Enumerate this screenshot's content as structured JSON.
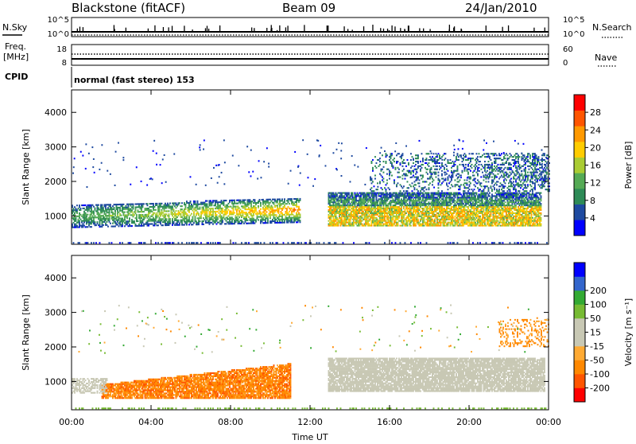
{
  "header": {
    "station": "Blackstone (fitACF)",
    "beam": "Beam 09",
    "date": "24/Jan/2010"
  },
  "noise_panel": {
    "left_label": "N.Sky",
    "right_label": "N.Search",
    "left_ticks": [
      "10^5",
      "10^0"
    ],
    "right_ticks": [
      "10^5",
      "10^0"
    ]
  },
  "freq_panel": {
    "left_label_1": "Freq.",
    "left_label_2": "[MHz]",
    "right_label": "Nave",
    "left_ticks": [
      "18",
      "8"
    ],
    "right_ticks": [
      "60",
      "0"
    ]
  },
  "cpid_panel": {
    "left_label": "CPID",
    "mode_text": "normal (fast stereo) 153"
  },
  "colors": {
    "power_scale": [
      "#0000ff",
      "#1e4aa0",
      "#2e8b57",
      "#55aa55",
      "#aacc33",
      "#ffcc00",
      "#ff9900",
      "#ff5500",
      "#ff0000"
    ],
    "velocity_scale": [
      "#ff0000",
      "#ff5500",
      "#ff8800",
      "#ffaa33",
      "#c8c8b4",
      "#c8c8b4",
      "#77bb33",
      "#33aa33",
      "#3366cc",
      "#0000ff"
    ]
  },
  "chart_data": [
    {
      "type": "heatmap",
      "title": "",
      "xlabel": "",
      "ylabel": "Slant Range [km]",
      "xlim": [
        0,
        24
      ],
      "ylim": [
        180,
        4650
      ],
      "x_ticks": [
        "00:00",
        "04:00",
        "08:00",
        "12:00",
        "16:00",
        "20:00",
        "00:00"
      ],
      "y_ticks": [
        1000,
        2000,
        3000,
        4000
      ],
      "colorbar": {
        "label": "Power [dB]",
        "ticks": [
          4,
          8,
          12,
          16,
          20,
          24,
          28
        ],
        "range": [
          0,
          32
        ]
      },
      "features": [
        {
          "name": "main echo band (pre-noon)",
          "t_start": 0.0,
          "t_end": 11.5,
          "range_km_start": [
            650,
            1350
          ],
          "range_km_end": [
            800,
            1500
          ],
          "peak_power_db": 22
        },
        {
          "name": "main echo band (post-noon)",
          "t_start": 12.9,
          "t_end": 23.6,
          "range_km": [
            700,
            1650
          ],
          "peak_power_db": 28
        },
        {
          "name": "upper echo (post-noon)",
          "t_start": 15.0,
          "t_end": 24.0,
          "range_km": [
            1700,
            2800
          ],
          "peak_power_db": 12
        }
      ]
    },
    {
      "type": "heatmap",
      "title": "",
      "xlabel": "Time UT",
      "ylabel": "Slant Range [km]",
      "xlim": [
        0,
        24
      ],
      "ylim": [
        180,
        4650
      ],
      "x_ticks": [
        "00:00",
        "04:00",
        "08:00",
        "12:00",
        "16:00",
        "20:00",
        "00:00"
      ],
      "y_ticks": [
        1000,
        2000,
        3000,
        4000
      ],
      "colorbar": {
        "label": "Velocity [m s⁻¹]",
        "ticks": [
          "-200",
          "-100",
          "-50",
          "-15",
          "15",
          "50",
          "100",
          "200"
        ]
      },
      "features": [
        {
          "name": "westward flow band (pre-noon)",
          "t_start": 1.5,
          "t_end": 11.0,
          "range_km": [
            500,
            1500
          ],
          "velocity_ms": -80
        },
        {
          "name": "ground scatter band (post-noon)",
          "t_start": 12.9,
          "t_end": 23.8,
          "range_km": [
            700,
            1650
          ],
          "velocity_ms": 0
        }
      ]
    }
  ]
}
